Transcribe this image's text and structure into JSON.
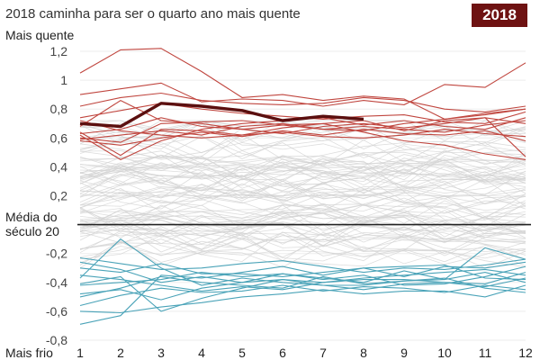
{
  "header": {
    "subtitle": "2018 caminha para ser o quarto ano mais quente",
    "badge": "2018"
  },
  "labels": {
    "top": "Mais quente",
    "middle_line1": "Média do",
    "middle_line2": "século 20",
    "bottom": "Mais frio"
  },
  "colors": {
    "warm": "#c0463f",
    "cold": "#4aa3b8",
    "neutral": "#d2d2d2",
    "highlight": "#5b0f0f",
    "baseline": "#222222",
    "badge_bg": "#6e1212"
  },
  "chart_data": {
    "type": "line",
    "x": [
      1,
      2,
      3,
      4,
      5,
      6,
      7,
      8,
      9,
      10,
      11,
      12
    ],
    "xlabel": "",
    "ylabel": "",
    "ylim": [
      -0.8,
      1.2
    ],
    "yticks": [
      1.2,
      1,
      0.8,
      0.6,
      0.4,
      0.2,
      -0.2,
      -0.4,
      -0.6,
      -0.8
    ],
    "ytick_labels": [
      "1,2",
      "1",
      "0,8",
      "0,6",
      "0,4",
      "0,2",
      "-0,2",
      "-0,4",
      "-0,6",
      "-0,8"
    ],
    "baseline": 0,
    "highlight_series": {
      "name": "2018",
      "values": [
        0.7,
        0.68,
        0.84,
        0.82,
        0.79,
        0.72,
        0.75,
        0.73
      ]
    },
    "warm_series": [
      [
        1.05,
        1.21,
        1.22,
        1.06,
        0.88,
        0.9,
        0.86,
        0.89,
        0.87,
        0.73,
        0.77,
        0.8
      ],
      [
        0.9,
        0.94,
        0.98,
        0.85,
        0.87,
        0.86,
        0.82,
        0.86,
        0.83,
        0.97,
        0.95,
        1.12
      ],
      [
        0.82,
        0.88,
        0.91,
        0.86,
        0.84,
        0.83,
        0.84,
        0.88,
        0.86,
        0.8,
        0.78,
        0.82
      ],
      [
        0.74,
        0.79,
        0.84,
        0.8,
        0.77,
        0.75,
        0.73,
        0.75,
        0.76,
        0.71,
        0.7,
        0.78
      ],
      [
        0.6,
        0.57,
        0.7,
        0.71,
        0.72,
        0.69,
        0.7,
        0.72,
        0.65,
        0.72,
        0.74,
        0.47
      ],
      [
        0.64,
        0.48,
        0.66,
        0.65,
        0.62,
        0.67,
        0.7,
        0.64,
        0.58,
        0.55,
        0.49,
        0.45
      ],
      [
        0.63,
        0.66,
        0.74,
        0.68,
        0.66,
        0.69,
        0.66,
        0.68,
        0.66,
        0.64,
        0.69,
        0.72
      ],
      [
        0.59,
        0.62,
        0.65,
        0.62,
        0.68,
        0.7,
        0.66,
        0.65,
        0.7,
        0.73,
        0.76,
        0.8
      ],
      [
        0.58,
        0.55,
        0.6,
        0.64,
        0.61,
        0.65,
        0.62,
        0.66,
        0.63,
        0.62,
        0.65,
        0.58
      ],
      [
        0.72,
        0.65,
        0.62,
        0.6,
        0.62,
        0.64,
        0.61,
        0.6,
        0.62,
        0.66,
        0.63,
        0.61
      ],
      [
        0.68,
        0.86,
        0.72,
        0.7,
        0.66,
        0.63,
        0.68,
        0.7,
        0.67,
        0.7,
        0.74,
        0.7
      ],
      [
        0.62,
        0.45,
        0.58,
        0.66,
        0.7,
        0.72,
        0.74,
        0.69,
        0.72,
        0.68,
        0.66,
        0.74
      ]
    ],
    "cold_series": [
      [
        -0.37,
        -0.1,
        -0.3,
        -0.42,
        -0.37,
        -0.4,
        -0.42,
        -0.42,
        -0.39,
        -0.38,
        -0.16,
        -0.24
      ],
      [
        -0.3,
        -0.33,
        -0.27,
        -0.34,
        -0.34,
        -0.36,
        -0.33,
        -0.3,
        -0.36,
        -0.29,
        -0.3,
        -0.26
      ],
      [
        -0.42,
        -0.4,
        -0.38,
        -0.33,
        -0.36,
        -0.34,
        -0.37,
        -0.4,
        -0.32,
        -0.38,
        -0.33,
        -0.4
      ],
      [
        -0.48,
        -0.45,
        -0.52,
        -0.44,
        -0.4,
        -0.38,
        -0.42,
        -0.45,
        -0.41,
        -0.4,
        -0.43,
        -0.37
      ],
      [
        -0.56,
        -0.49,
        -0.44,
        -0.47,
        -0.46,
        -0.42,
        -0.46,
        -0.43,
        -0.44,
        -0.47,
        -0.42,
        -0.45
      ],
      [
        -0.6,
        -0.61,
        -0.57,
        -0.54,
        -0.5,
        -0.48,
        -0.45,
        -0.48,
        -0.46,
        -0.46,
        -0.5,
        -0.42
      ],
      [
        -0.69,
        -0.63,
        -0.35,
        -0.37,
        -0.33,
        -0.29,
        -0.35,
        -0.3,
        -0.29,
        -0.28,
        -0.37,
        -0.38
      ],
      [
        -0.26,
        -0.31,
        -0.4,
        -0.36,
        -0.4,
        -0.34,
        -0.38,
        -0.35,
        -0.42,
        -0.41,
        -0.36,
        -0.29
      ],
      [
        -0.35,
        -0.38,
        -0.42,
        -0.46,
        -0.43,
        -0.45,
        -0.4,
        -0.38,
        -0.38,
        -0.4,
        -0.41,
        -0.33
      ],
      [
        -0.23,
        -0.27,
        -0.31,
        -0.3,
        -0.27,
        -0.25,
        -0.29,
        -0.33,
        -0.3,
        -0.31,
        -0.28,
        -0.24
      ],
      [
        -0.5,
        -0.44,
        -0.36,
        -0.4,
        -0.42,
        -0.44,
        -0.36,
        -0.41,
        -0.39,
        -0.37,
        -0.44,
        -0.47
      ],
      [
        -0.41,
        -0.36,
        -0.6,
        -0.51,
        -0.44,
        -0.38,
        -0.4,
        -0.37,
        -0.35,
        -0.33,
        -0.31,
        -0.35
      ]
    ],
    "neutral_series_count": 90
  }
}
